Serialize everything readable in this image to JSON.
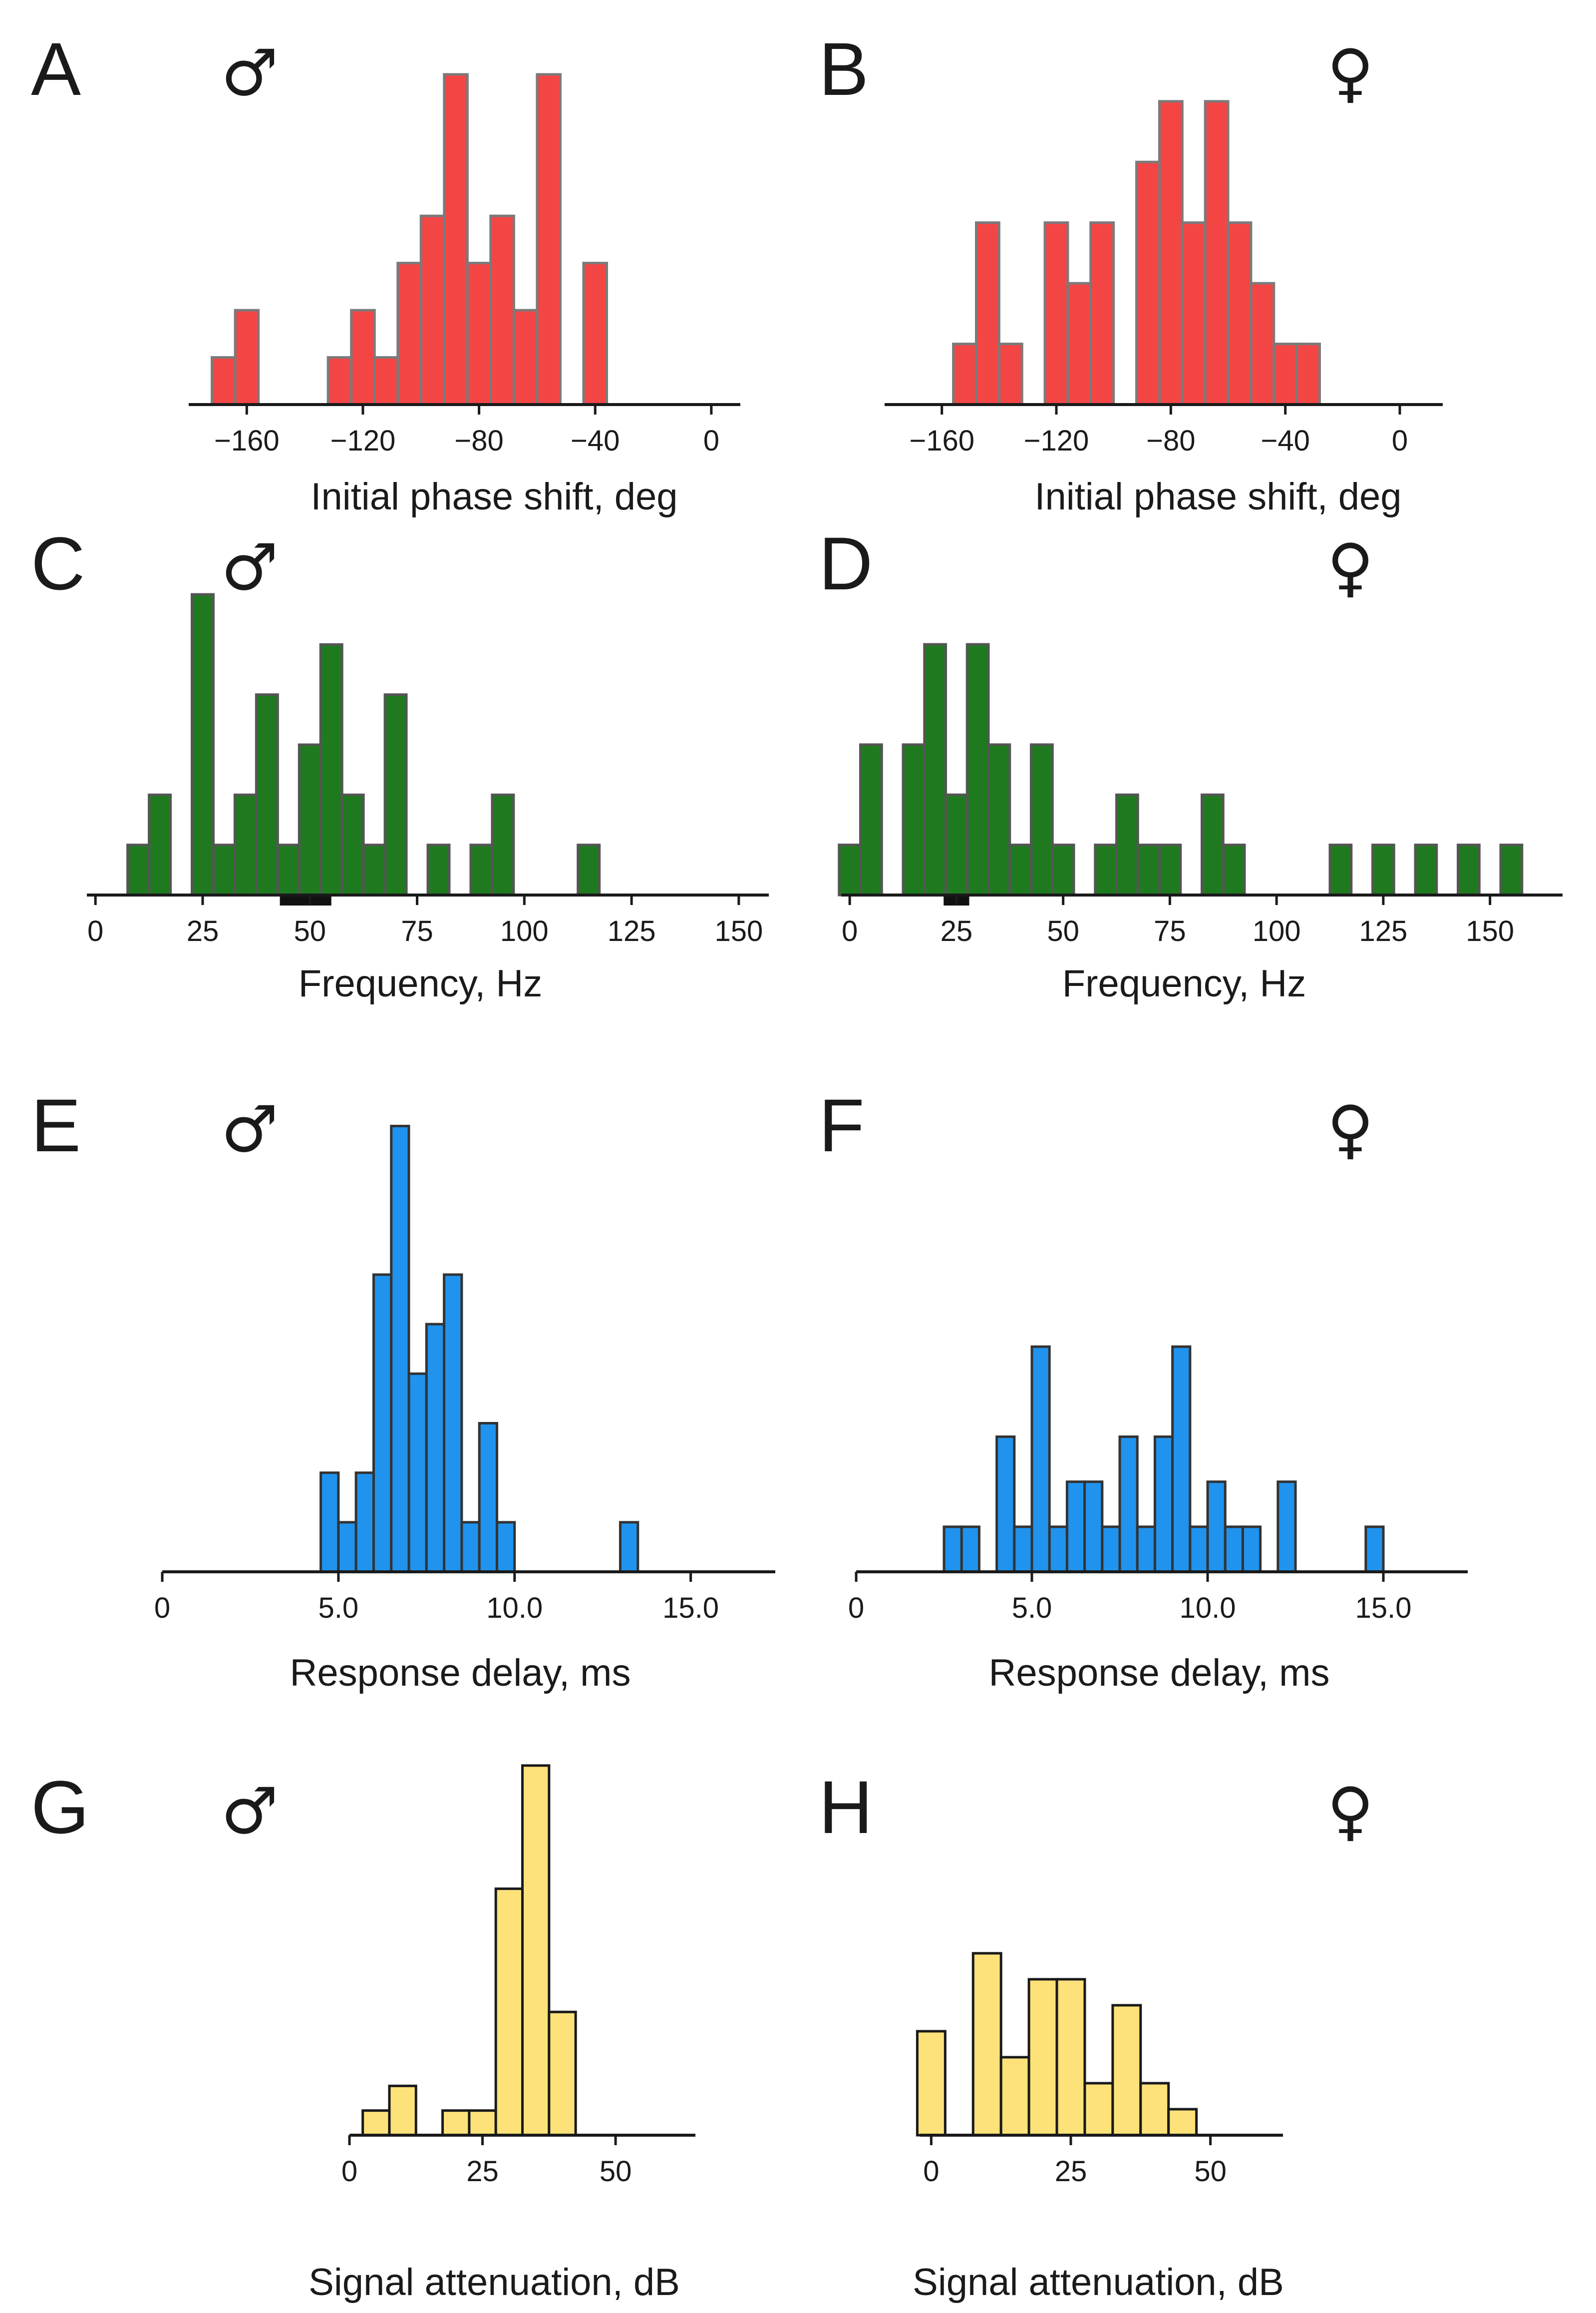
{
  "symbols": {
    "male": "♂",
    "female": "♀"
  },
  "colors": {
    "red": {
      "fill": "#f44545",
      "stroke": "#7a7a7a"
    },
    "green": {
      "fill": "#1f7a1f",
      "stroke": "#555555"
    },
    "blue": {
      "fill": "#1f93ee",
      "stroke": "#333333"
    },
    "yellow": {
      "fill": "#fde27a",
      "stroke": "#1a1a1a"
    }
  },
  "chart_data": [
    {
      "id": "A",
      "panel_label": "A",
      "sex": "male",
      "type": "bar",
      "color": "red",
      "xlabel": "Initial phase shift, deg",
      "xlim": [
        -180,
        10
      ],
      "ylim": [
        0,
        7.2
      ],
      "ticks": [
        -160,
        -120,
        -80,
        -40,
        0
      ],
      "tick_labels": [
        "−160",
        "−120",
        "−80",
        "−40",
        "0"
      ],
      "bin_width": 8,
      "bars": [
        {
          "x": -168,
          "y": 1
        },
        {
          "x": -160,
          "y": 2
        },
        {
          "x": -128,
          "y": 1
        },
        {
          "x": -120,
          "y": 2
        },
        {
          "x": -112,
          "y": 1
        },
        {
          "x": -104,
          "y": 3
        },
        {
          "x": -96,
          "y": 4
        },
        {
          "x": -88,
          "y": 7
        },
        {
          "x": -80,
          "y": 3
        },
        {
          "x": -72,
          "y": 4
        },
        {
          "x": -64,
          "y": 2
        },
        {
          "x": -56,
          "y": 7
        },
        {
          "x": -40,
          "y": 3
        }
      ]
    },
    {
      "id": "B",
      "panel_label": "B",
      "sex": "female",
      "type": "bar",
      "color": "red",
      "xlabel": "Initial phase shift, deg",
      "xlim": [
        -180,
        15
      ],
      "ylim": [
        0,
        5.6
      ],
      "ticks": [
        -160,
        -120,
        -80,
        -40,
        0
      ],
      "tick_labels": [
        "−160",
        "−120",
        "−80",
        "−40",
        "0"
      ],
      "bin_width": 8,
      "bars": [
        {
          "x": -152,
          "y": 1
        },
        {
          "x": -144,
          "y": 3
        },
        {
          "x": -136,
          "y": 1
        },
        {
          "x": -120,
          "y": 3
        },
        {
          "x": -112,
          "y": 2
        },
        {
          "x": -104,
          "y": 3
        },
        {
          "x": -88,
          "y": 4
        },
        {
          "x": -80,
          "y": 5
        },
        {
          "x": -72,
          "y": 3
        },
        {
          "x": -64,
          "y": 5
        },
        {
          "x": -56,
          "y": 3
        },
        {
          "x": -48,
          "y": 2
        },
        {
          "x": -40,
          "y": 1
        },
        {
          "x": -32,
          "y": 1
        }
      ]
    },
    {
      "id": "C",
      "panel_label": "C",
      "sex": "male",
      "type": "bar",
      "color": "green",
      "xlabel": "Frequency, Hz",
      "xlim": [
        -2,
        157
      ],
      "ylim": [
        0,
        6.2
      ],
      "ticks": [
        0,
        25,
        50,
        75,
        100,
        125,
        150
      ],
      "tick_labels": [
        "0",
        "25",
        "50",
        "75",
        "100",
        "125",
        "150"
      ],
      "bin_width": 5,
      "bars": [
        {
          "x": 10,
          "y": 1
        },
        {
          "x": 15,
          "y": 2
        },
        {
          "x": 25,
          "y": 6
        },
        {
          "x": 30,
          "y": 1
        },
        {
          "x": 35,
          "y": 2
        },
        {
          "x": 40,
          "y": 4
        },
        {
          "x": 45,
          "y": 1
        },
        {
          "x": 50,
          "y": 3
        },
        {
          "x": 55,
          "y": 5
        },
        {
          "x": 60,
          "y": 2
        },
        {
          "x": 65,
          "y": 1
        },
        {
          "x": 70,
          "y": 4
        },
        {
          "x": 80,
          "y": 1
        },
        {
          "x": 90,
          "y": 1
        },
        {
          "x": 95,
          "y": 2
        },
        {
          "x": 115,
          "y": 1
        }
      ],
      "range_marker": [
        43,
        55
      ]
    },
    {
      "id": "D",
      "panel_label": "D",
      "sex": "female",
      "type": "bar",
      "color": "green",
      "xlabel": "Frequency, Hz",
      "xlim": [
        -2,
        167
      ],
      "ylim": [
        0,
        5.2
      ],
      "ticks": [
        0,
        25,
        50,
        75,
        100,
        125,
        150
      ],
      "tick_labels": [
        "0",
        "25",
        "50",
        "75",
        "100",
        "125",
        "150"
      ],
      "bin_width": 5,
      "bars": [
        {
          "x": 0,
          "y": 1
        },
        {
          "x": 5,
          "y": 3
        },
        {
          "x": 15,
          "y": 3
        },
        {
          "x": 20,
          "y": 5
        },
        {
          "x": 25,
          "y": 2
        },
        {
          "x": 30,
          "y": 5
        },
        {
          "x": 35,
          "y": 3
        },
        {
          "x": 40,
          "y": 1
        },
        {
          "x": 45,
          "y": 3
        },
        {
          "x": 50,
          "y": 1
        },
        {
          "x": 60,
          "y": 1
        },
        {
          "x": 65,
          "y": 2
        },
        {
          "x": 70,
          "y": 1
        },
        {
          "x": 75,
          "y": 1
        },
        {
          "x": 85,
          "y": 2
        },
        {
          "x": 90,
          "y": 1
        },
        {
          "x": 115,
          "y": 1
        },
        {
          "x": 125,
          "y": 1
        },
        {
          "x": 135,
          "y": 1
        },
        {
          "x": 145,
          "y": 1
        },
        {
          "x": 155,
          "y": 1
        }
      ],
      "range_marker": [
        22,
        28
      ]
    },
    {
      "id": "E",
      "panel_label": "E",
      "sex": "male",
      "type": "bar",
      "color": "blue",
      "xlabel": "Response delay, ms",
      "xlim": [
        0,
        17.4
      ],
      "ylim": [
        0,
        9.6
      ],
      "ticks": [
        0,
        5,
        10,
        15
      ],
      "tick_labels": [
        "0",
        "5.0",
        "10.0",
        "15.0"
      ],
      "bin_width": 0.5,
      "bars": [
        {
          "x": 4.75,
          "y": 2
        },
        {
          "x": 5.25,
          "y": 1
        },
        {
          "x": 5.75,
          "y": 2
        },
        {
          "x": 6.25,
          "y": 6
        },
        {
          "x": 6.75,
          "y": 9
        },
        {
          "x": 7.25,
          "y": 4
        },
        {
          "x": 7.75,
          "y": 5
        },
        {
          "x": 8.25,
          "y": 6
        },
        {
          "x": 8.75,
          "y": 1
        },
        {
          "x": 9.25,
          "y": 3
        },
        {
          "x": 9.75,
          "y": 1
        },
        {
          "x": 13.25,
          "y": 1
        }
      ]
    },
    {
      "id": "F",
      "panel_label": "F",
      "sex": "female",
      "type": "bar",
      "color": "blue",
      "xlabel": "Response delay, ms",
      "xlim": [
        0,
        17.4
      ],
      "ylim": [
        0,
        6.4
      ],
      "ticks": [
        0,
        5,
        10,
        15
      ],
      "tick_labels": [
        "0",
        "5.0",
        "10.0",
        "15.0"
      ],
      "bin_width": 0.5,
      "bars": [
        {
          "x": 2.75,
          "y": 1
        },
        {
          "x": 3.25,
          "y": 1
        },
        {
          "x": 4.25,
          "y": 3
        },
        {
          "x": 4.75,
          "y": 1
        },
        {
          "x": 5.25,
          "y": 5
        },
        {
          "x": 5.75,
          "y": 1
        },
        {
          "x": 6.25,
          "y": 2
        },
        {
          "x": 6.75,
          "y": 2
        },
        {
          "x": 7.25,
          "y": 1
        },
        {
          "x": 7.75,
          "y": 3
        },
        {
          "x": 8.25,
          "y": 1
        },
        {
          "x": 8.75,
          "y": 3
        },
        {
          "x": 9.25,
          "y": 5
        },
        {
          "x": 9.75,
          "y": 1
        },
        {
          "x": 10.25,
          "y": 2
        },
        {
          "x": 10.75,
          "y": 1
        },
        {
          "x": 11.25,
          "y": 1
        },
        {
          "x": 12.25,
          "y": 2
        },
        {
          "x": 14.75,
          "y": 1
        }
      ]
    },
    {
      "id": "G",
      "panel_label": "G",
      "sex": "male",
      "type": "bar",
      "color": "yellow",
      "xlabel": "Signal attenuation, dB",
      "xlim": [
        0,
        65
      ],
      "ylim": [
        0,
        15.2
      ],
      "ticks": [
        0,
        25,
        50
      ],
      "tick_labels": [
        "0",
        "25",
        "50"
      ],
      "bin_width": 5,
      "bars": [
        {
          "x": 5,
          "y": 1
        },
        {
          "x": 10,
          "y": 2
        },
        {
          "x": 20,
          "y": 1
        },
        {
          "x": 25,
          "y": 1
        },
        {
          "x": 30,
          "y": 10
        },
        {
          "x": 35,
          "y": 15
        },
        {
          "x": 40,
          "y": 5
        }
      ]
    },
    {
      "id": "H",
      "panel_label": "H",
      "sex": "female",
      "type": "bar",
      "color": "yellow",
      "xlabel": "Signal attenuation, dB",
      "xlim": [
        -2,
        63
      ],
      "ylim": [
        0,
        7.4
      ],
      "ticks": [
        0,
        25,
        50
      ],
      "tick_labels": [
        "0",
        "25",
        "50"
      ],
      "bin_width": 5,
      "bars": [
        {
          "x": 0,
          "y": 4
        },
        {
          "x": 10,
          "y": 7
        },
        {
          "x": 15,
          "y": 3
        },
        {
          "x": 20,
          "y": 6
        },
        {
          "x": 25,
          "y": 6
        },
        {
          "x": 30,
          "y": 2
        },
        {
          "x": 35,
          "y": 5
        },
        {
          "x": 40,
          "y": 2
        },
        {
          "x": 45,
          "y": 1
        }
      ]
    }
  ]
}
